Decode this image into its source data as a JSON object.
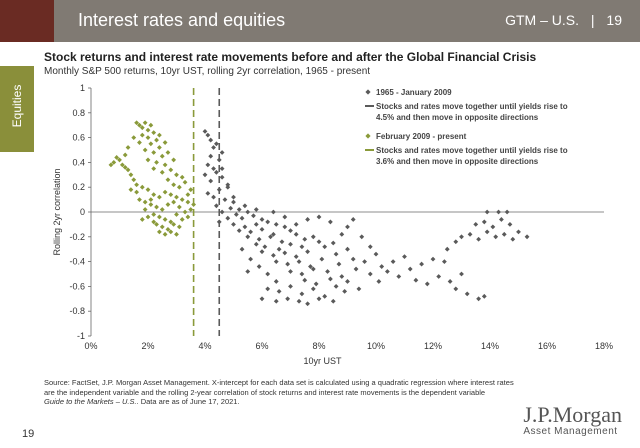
{
  "header": {
    "title": "Interest rates and equities",
    "right_label": "GTM – U.S.",
    "separator": "|",
    "page_badge": "19",
    "bg_color": "#807a73",
    "brand_color": "#6a2b23"
  },
  "side_tab": {
    "label": "Equities",
    "color": "#8a8f3a"
  },
  "chart_data": {
    "type": "scatter",
    "title": "Stock returns and interest rate movements before and after the Global Financial Crisis",
    "subtitle": "Monthly S&P 500 returns, 10yr UST, rolling 2yr correlation, 1965 - present",
    "xlabel": "10yr UST",
    "ylabel": "Rolling 2yr correlation",
    "xlim": [
      0,
      18
    ],
    "ylim": [
      -1,
      1
    ],
    "x_ticks": [
      0,
      2,
      4,
      6,
      8,
      10,
      12,
      14,
      16,
      18
    ],
    "x_tick_labels": [
      "0%",
      "2%",
      "4%",
      "6%",
      "8%",
      "10%",
      "12%",
      "14%",
      "16%",
      "18%"
    ],
    "y_ticks": [
      1,
      0.8,
      0.6,
      0.4,
      0.2,
      0,
      -0.2,
      -0.4,
      -0.6,
      -0.8,
      -1
    ],
    "y_tick_labels": [
      "1",
      "0.8",
      "0.6",
      "0.4",
      "0.2",
      "0",
      "-0.2",
      "-0.4",
      "-0.6",
      "-0.8",
      "-1"
    ],
    "grid": false,
    "legend_position": "top-right",
    "series": [
      {
        "name": "1965 - January 2009",
        "color": "#5a5a5a",
        "marker": "diamond",
        "threshold_x": 4.5,
        "threshold_label": "Stocks and rates move together until yields rise to 4.5% and then move in opposite directions",
        "points": [
          [
            4.0,
            0.65
          ],
          [
            4.1,
            0.62
          ],
          [
            4.2,
            0.58
          ],
          [
            4.3,
            0.52
          ],
          [
            4.4,
            0.55
          ],
          [
            4.6,
            0.48
          ],
          [
            4.2,
            0.45
          ],
          [
            4.5,
            0.42
          ],
          [
            4.1,
            0.38
          ],
          [
            4.3,
            0.35
          ],
          [
            4.4,
            0.32
          ],
          [
            4.0,
            0.3
          ],
          [
            4.6,
            0.28
          ],
          [
            4.2,
            0.25
          ],
          [
            4.8,
            0.22
          ],
          [
            4.5,
            0.18
          ],
          [
            4.1,
            0.15
          ],
          [
            4.3,
            0.12
          ],
          [
            4.7,
            0.1
          ],
          [
            5.0,
            0.08
          ],
          [
            4.4,
            0.05
          ],
          [
            4.9,
            0.03
          ],
          [
            5.2,
            0.02
          ],
          [
            4.6,
            0.0
          ],
          [
            5.5,
            0.0
          ],
          [
            5.1,
            -0.02
          ],
          [
            4.8,
            -0.05
          ],
          [
            5.3,
            -0.05
          ],
          [
            5.7,
            -0.03
          ],
          [
            6.0,
            -0.06
          ],
          [
            4.5,
            -0.08
          ],
          [
            5.0,
            -0.1
          ],
          [
            5.4,
            -0.12
          ],
          [
            5.8,
            -0.1
          ],
          [
            6.2,
            -0.08
          ],
          [
            6.5,
            -0.1
          ],
          [
            5.2,
            -0.15
          ],
          [
            5.6,
            -0.16
          ],
          [
            6.0,
            -0.14
          ],
          [
            6.4,
            -0.18
          ],
          [
            6.8,
            -0.12
          ],
          [
            7.0,
            -0.15
          ],
          [
            5.5,
            -0.2
          ],
          [
            5.9,
            -0.22
          ],
          [
            6.3,
            -0.2
          ],
          [
            6.7,
            -0.24
          ],
          [
            7.2,
            -0.18
          ],
          [
            7.5,
            -0.22
          ],
          [
            5.8,
            -0.26
          ],
          [
            6.1,
            -0.28
          ],
          [
            6.6,
            -0.3
          ],
          [
            7.0,
            -0.26
          ],
          [
            7.4,
            -0.28
          ],
          [
            7.8,
            -0.2
          ],
          [
            8.0,
            -0.24
          ],
          [
            6.0,
            -0.32
          ],
          [
            6.4,
            -0.35
          ],
          [
            6.8,
            -0.33
          ],
          [
            7.2,
            -0.36
          ],
          [
            7.6,
            -0.32
          ],
          [
            8.2,
            -0.28
          ],
          [
            8.5,
            -0.25
          ],
          [
            6.5,
            -0.4
          ],
          [
            6.9,
            -0.42
          ],
          [
            7.3,
            -0.4
          ],
          [
            7.7,
            -0.44
          ],
          [
            8.1,
            -0.38
          ],
          [
            8.6,
            -0.34
          ],
          [
            9.0,
            -0.3
          ],
          [
            7.0,
            -0.48
          ],
          [
            7.4,
            -0.5
          ],
          [
            7.8,
            -0.46
          ],
          [
            8.3,
            -0.48
          ],
          [
            8.7,
            -0.42
          ],
          [
            9.2,
            -0.38
          ],
          [
            7.5,
            -0.55
          ],
          [
            7.9,
            -0.58
          ],
          [
            8.4,
            -0.54
          ],
          [
            8.8,
            -0.52
          ],
          [
            9.3,
            -0.46
          ],
          [
            6.2,
            -0.62
          ],
          [
            6.6,
            -0.64
          ],
          [
            7.0,
            -0.6
          ],
          [
            7.4,
            -0.66
          ],
          [
            7.8,
            -0.62
          ],
          [
            8.2,
            -0.68
          ],
          [
            8.6,
            -0.6
          ],
          [
            9.0,
            -0.56
          ],
          [
            6.0,
            -0.7
          ],
          [
            6.5,
            -0.72
          ],
          [
            6.9,
            -0.7
          ],
          [
            7.3,
            -0.72
          ],
          [
            8.0,
            -0.7
          ],
          [
            8.5,
            -0.72
          ],
          [
            9.4,
            -0.62
          ],
          [
            9.8,
            -0.5
          ],
          [
            10.2,
            -0.44
          ],
          [
            10.6,
            -0.4
          ],
          [
            11.0,
            -0.36
          ],
          [
            10.4,
            -0.48
          ],
          [
            10.8,
            -0.52
          ],
          [
            11.2,
            -0.46
          ],
          [
            11.6,
            -0.42
          ],
          [
            12.0,
            -0.38
          ],
          [
            12.4,
            -0.4
          ],
          [
            11.4,
            -0.55
          ],
          [
            11.8,
            -0.58
          ],
          [
            12.2,
            -0.52
          ],
          [
            12.6,
            -0.56
          ],
          [
            13.0,
            -0.5
          ],
          [
            12.8,
            -0.62
          ],
          [
            13.2,
            -0.66
          ],
          [
            13.6,
            -0.7
          ],
          [
            13.8,
            -0.68
          ],
          [
            12.5,
            -0.3
          ],
          [
            12.8,
            -0.24
          ],
          [
            13.0,
            -0.2
          ],
          [
            13.3,
            -0.18
          ],
          [
            13.6,
            -0.22
          ],
          [
            13.9,
            -0.16
          ],
          [
            14.2,
            -0.2
          ],
          [
            14.5,
            -0.18
          ],
          [
            14.8,
            -0.22
          ],
          [
            15.0,
            -0.16
          ],
          [
            15.3,
            -0.2
          ],
          [
            13.5,
            -0.1
          ],
          [
            13.8,
            -0.08
          ],
          [
            14.1,
            -0.12
          ],
          [
            14.4,
            -0.06
          ],
          [
            14.7,
            -0.1
          ],
          [
            13.9,
            0.0
          ],
          [
            14.3,
            0.0
          ],
          [
            14.6,
            0.0
          ],
          [
            9.2,
            -0.06
          ],
          [
            9.0,
            -0.12
          ],
          [
            8.8,
            -0.18
          ],
          [
            9.5,
            -0.2
          ],
          [
            9.8,
            -0.28
          ],
          [
            10.0,
            -0.34
          ],
          [
            8.4,
            -0.08
          ],
          [
            8.0,
            -0.04
          ],
          [
            7.6,
            -0.06
          ],
          [
            7.2,
            -0.1
          ],
          [
            6.8,
            -0.04
          ],
          [
            6.4,
            0.0
          ],
          [
            5.8,
            0.02
          ],
          [
            5.4,
            0.05
          ],
          [
            5.0,
            0.12
          ],
          [
            4.8,
            0.2
          ],
          [
            4.6,
            0.35
          ],
          [
            5.3,
            -0.3
          ],
          [
            5.6,
            -0.38
          ],
          [
            5.9,
            -0.44
          ],
          [
            6.2,
            -0.5
          ],
          [
            6.5,
            -0.56
          ],
          [
            5.5,
            -0.48
          ],
          [
            9.6,
            -0.4
          ],
          [
            10.1,
            -0.56
          ],
          [
            8.9,
            -0.64
          ],
          [
            7.6,
            -0.74
          ]
        ]
      },
      {
        "name": "February 2009 - present",
        "color": "#8a9a3a",
        "marker": "diamond",
        "threshold_x": 3.6,
        "threshold_label": "Stocks and rates move together until yields rise to 3.6% and then move in opposite directions",
        "points": [
          [
            1.6,
            0.72
          ],
          [
            1.7,
            0.7
          ],
          [
            1.8,
            0.68
          ],
          [
            1.9,
            0.72
          ],
          [
            2.0,
            0.66
          ],
          [
            2.1,
            0.7
          ],
          [
            2.2,
            0.64
          ],
          [
            1.8,
            0.62
          ],
          [
            2.0,
            0.6
          ],
          [
            2.3,
            0.58
          ],
          [
            2.1,
            0.55
          ],
          [
            2.4,
            0.52
          ],
          [
            1.9,
            0.5
          ],
          [
            2.2,
            0.48
          ],
          [
            2.5,
            0.45
          ],
          [
            2.0,
            0.42
          ],
          [
            2.3,
            0.4
          ],
          [
            2.6,
            0.38
          ],
          [
            2.2,
            0.35
          ],
          [
            2.5,
            0.32
          ],
          [
            2.8,
            0.34
          ],
          [
            3.0,
            0.3
          ],
          [
            3.2,
            0.28
          ],
          [
            2.7,
            0.26
          ],
          [
            2.9,
            0.22
          ],
          [
            3.1,
            0.2
          ],
          [
            3.3,
            0.24
          ],
          [
            0.7,
            0.38
          ],
          [
            0.8,
            0.4
          ],
          [
            0.9,
            0.44
          ],
          [
            1.0,
            0.42
          ],
          [
            1.1,
            0.38
          ],
          [
            1.2,
            0.36
          ],
          [
            1.3,
            0.34
          ],
          [
            1.4,
            0.3
          ],
          [
            1.5,
            0.26
          ],
          [
            1.6,
            0.22
          ],
          [
            1.4,
            0.18
          ],
          [
            1.6,
            0.16
          ],
          [
            1.8,
            0.2
          ],
          [
            2.0,
            0.18
          ],
          [
            2.2,
            0.14
          ],
          [
            2.4,
            0.12
          ],
          [
            1.7,
            0.1
          ],
          [
            1.9,
            0.08
          ],
          [
            2.1,
            0.06
          ],
          [
            2.3,
            0.04
          ],
          [
            2.5,
            0.02
          ],
          [
            2.7,
            0.06
          ],
          [
            2.9,
            0.08
          ],
          [
            3.1,
            0.04
          ],
          [
            3.3,
            0.0
          ],
          [
            3.5,
            0.02
          ],
          [
            2.2,
            -0.02
          ],
          [
            2.4,
            -0.04
          ],
          [
            2.6,
            -0.06
          ],
          [
            2.8,
            -0.08
          ],
          [
            3.0,
            -0.02
          ],
          [
            3.2,
            -0.06
          ],
          [
            3.4,
            -0.04
          ],
          [
            2.3,
            -0.1
          ],
          [
            2.5,
            -0.12
          ],
          [
            2.7,
            -0.14
          ],
          [
            2.9,
            -0.1
          ],
          [
            3.1,
            -0.12
          ],
          [
            2.4,
            -0.16
          ],
          [
            2.6,
            -0.18
          ],
          [
            2.8,
            -0.16
          ],
          [
            3.0,
            -0.18
          ],
          [
            2.2,
            -0.08
          ],
          [
            1.9,
            0.02
          ],
          [
            2.0,
            -0.04
          ],
          [
            1.8,
            -0.06
          ],
          [
            2.1,
            0.1
          ],
          [
            2.6,
            0.16
          ],
          [
            2.8,
            0.14
          ],
          [
            3.0,
            0.12
          ],
          [
            3.2,
            0.1
          ],
          [
            3.4,
            0.14
          ],
          [
            3.5,
            0.18
          ],
          [
            1.5,
            0.6
          ],
          [
            1.7,
            0.56
          ],
          [
            2.4,
            0.62
          ],
          [
            2.6,
            0.56
          ],
          [
            1.2,
            0.46
          ],
          [
            1.3,
            0.52
          ],
          [
            3.4,
            0.08
          ],
          [
            3.6,
            0.06
          ],
          [
            2.9,
            0.42
          ],
          [
            2.7,
            0.48
          ]
        ]
      }
    ]
  },
  "footnote": {
    "text": "Source: FactSet, J.P. Morgan Asset Management. X-intercept for each data set is calculated using a quadratic regression where interest rates are the independent variable and the rolling 2-year correlation of stock returns and interest rate movements is the dependent variable",
    "guide": "Guide to the Markets – U.S.",
    "date_note": "Data are as of June 17, 2021."
  },
  "page_number": "19",
  "logo": {
    "name": "J.P.Morgan",
    "sub": "Asset Management"
  }
}
